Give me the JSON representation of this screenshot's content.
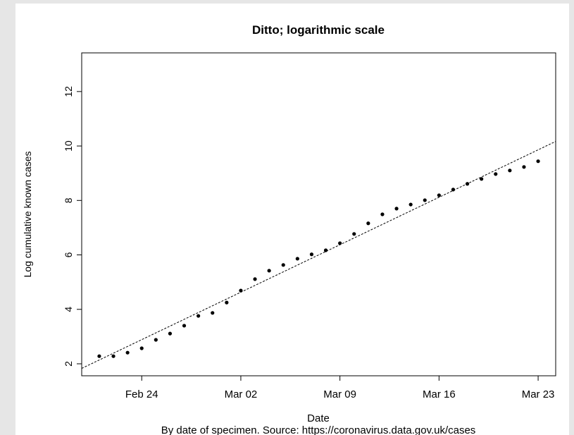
{
  "chart_data": {
    "type": "scatter",
    "title": "Ditto; logarithmic scale",
    "xlabel": "Date",
    "ylabel": "Log cumulative known cases",
    "caption": "By date of specimen. Source: https://coronavirus.data.gov.uk/cases",
    "x": [
      "Feb 21",
      "Feb 22",
      "Feb 23",
      "Feb 24",
      "Feb 25",
      "Feb 26",
      "Feb 27",
      "Feb 28",
      "Feb 29",
      "Mar 01",
      "Mar 02",
      "Mar 03",
      "Mar 04",
      "Mar 05",
      "Mar 06",
      "Mar 07",
      "Mar 08",
      "Mar 09",
      "Mar 10",
      "Mar 11",
      "Mar 12",
      "Mar 13",
      "Mar 14",
      "Mar 15",
      "Mar 16",
      "Mar 17",
      "Mar 18",
      "Mar 19",
      "Mar 20",
      "Mar 21",
      "Mar 22",
      "Mar 23"
    ],
    "values": [
      2.28,
      2.28,
      2.41,
      2.57,
      2.88,
      3.11,
      3.4,
      3.76,
      3.87,
      4.25,
      4.69,
      5.11,
      5.42,
      5.63,
      5.86,
      6.02,
      6.17,
      6.43,
      6.77,
      7.16,
      7.49,
      7.7,
      7.85,
      8.01,
      8.19,
      8.4,
      8.61,
      8.79,
      8.97,
      9.1,
      9.23,
      9.44
    ],
    "color": "#000000",
    "xticks": [
      "Feb 24",
      "Mar 02",
      "Mar 09",
      "Mar 16",
      "Mar 23"
    ],
    "ylim": [
      1.56,
      13.42
    ],
    "yticks": [
      2,
      4,
      6,
      8,
      10,
      12
    ],
    "trend": {
      "intercept": 2.14,
      "slope": 0.249
    }
  }
}
